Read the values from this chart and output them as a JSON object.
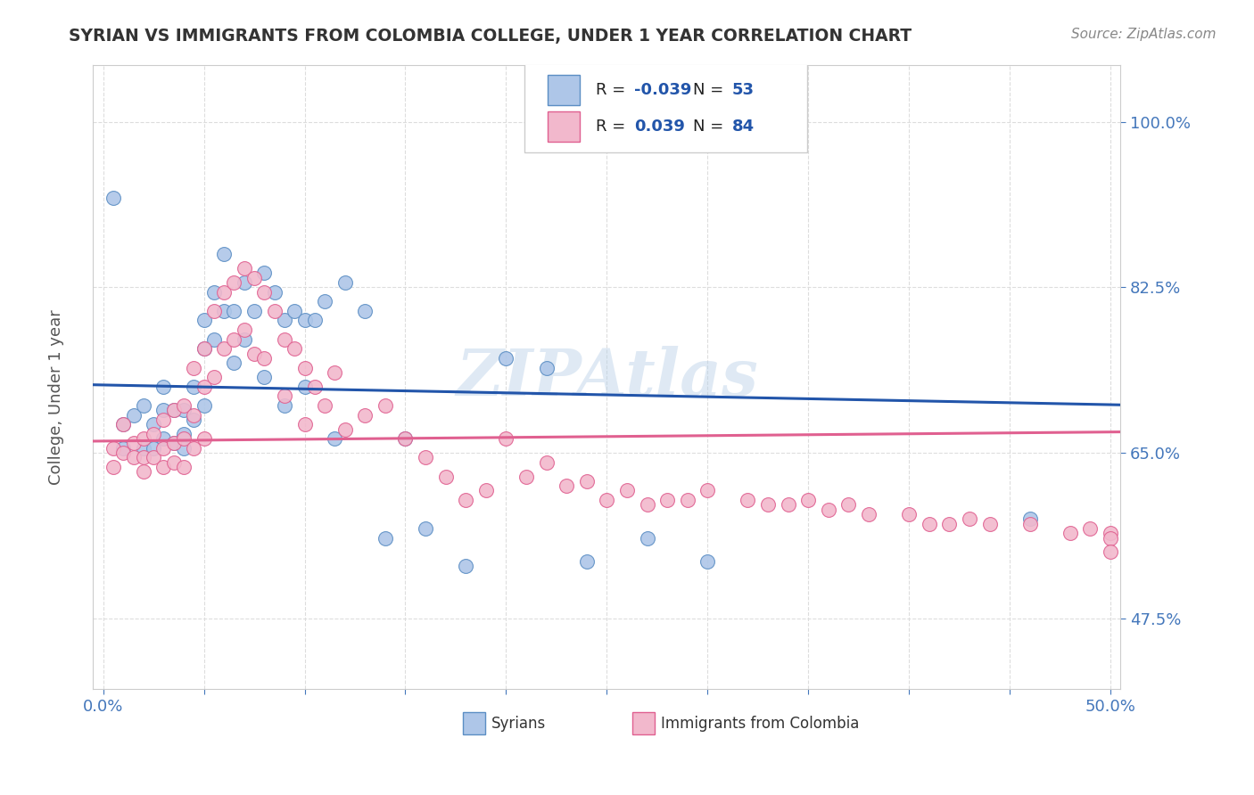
{
  "title": "SYRIAN VS IMMIGRANTS FROM COLOMBIA COLLEGE, UNDER 1 YEAR CORRELATION CHART",
  "source_text": "Source: ZipAtlas.com",
  "ylabel": "College, Under 1 year",
  "xlim": [
    -0.005,
    0.505
  ],
  "ylim": [
    0.4,
    1.06
  ],
  "xticks": [
    0.0,
    0.05,
    0.1,
    0.15,
    0.2,
    0.25,
    0.3,
    0.35,
    0.4,
    0.45,
    0.5
  ],
  "xtick_labels": [
    "0.0%",
    "",
    "",
    "",
    "",
    "",
    "",
    "",
    "",
    "",
    "50.0%"
  ],
  "ytick_labels": [
    "47.5%",
    "65.0%",
    "82.5%",
    "100.0%"
  ],
  "yticks": [
    0.475,
    0.65,
    0.825,
    1.0
  ],
  "syrian_color": "#aec6e8",
  "colombia_color": "#f2b8cc",
  "syrian_edge": "#5b8ec4",
  "colombia_edge": "#e06090",
  "trend_blue": "#2255aa",
  "trend_pink": "#e06090",
  "legend_r1": "-0.039",
  "legend_n1": "53",
  "legend_r2": "0.039",
  "legend_n2": "84",
  "watermark": "ZIPAtlas"
}
